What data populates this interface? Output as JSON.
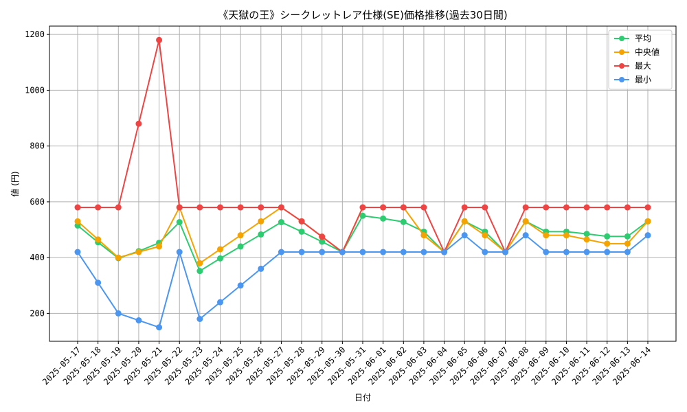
{
  "chart_data": {
    "type": "line",
    "title": "《天獄の王》シークレットレア仕様(SE)価格推移(過去30日間)",
    "xlabel": "日付",
    "ylabel": "値 (円)",
    "ylim": [
      100,
      1230
    ],
    "yticks": [
      200,
      400,
      600,
      800,
      1000,
      1200
    ],
    "grid": true,
    "legend_position": "top-right",
    "categories": [
      "2025-05-17",
      "2025-05-18",
      "2025-05-19",
      "2025-05-20",
      "2025-05-21",
      "2025-05-22",
      "2025-05-23",
      "2025-05-24",
      "2025-05-25",
      "2025-05-26",
      "2025-05-27",
      "2025-05-28",
      "2025-05-29",
      "2025-05-30",
      "2025-05-31",
      "2025-06-01",
      "2025-06-02",
      "2025-06-03",
      "2025-06-04",
      "2025-06-05",
      "2025-06-06",
      "2025-06-07",
      "2025-06-08",
      "2025-06-09",
      "2025-06-10",
      "2025-06-11",
      "2025-06-12",
      "2025-06-13",
      "2025-06-14"
    ],
    "series": [
      {
        "name": "平均",
        "color": "#2ecc71",
        "values": [
          515,
          455,
          398,
          423,
          453,
          527,
          352,
          397,
          440,
          483,
          527,
          493,
          457,
          420,
          550,
          540,
          528,
          493,
          420,
          530,
          493,
          420,
          530,
          493,
          493,
          485,
          476,
          476,
          530
        ]
      },
      {
        "name": "中央値",
        "color": "#f5a300",
        "values": [
          530,
          465,
          400,
          420,
          440,
          580,
          380,
          430,
          480,
          530,
          580,
          530,
          475,
          420,
          580,
          580,
          580,
          480,
          420,
          530,
          480,
          420,
          530,
          480,
          480,
          465,
          450,
          450,
          530
        ]
      },
      {
        "name": "最大",
        "color": "#ef4444",
        "values": [
          580,
          580,
          580,
          880,
          1180,
          580,
          580,
          580,
          580,
          580,
          580,
          530,
          475,
          420,
          580,
          580,
          580,
          580,
          420,
          580,
          580,
          420,
          580,
          580,
          580,
          580,
          580,
          580,
          580
        ]
      },
      {
        "name": "最小",
        "color": "#4b96f0",
        "values": [
          420,
          310,
          200,
          175,
          150,
          420,
          180,
          240,
          300,
          360,
          420,
          420,
          420,
          420,
          420,
          420,
          420,
          420,
          420,
          480,
          420,
          420,
          480,
          420,
          420,
          420,
          420,
          420,
          480
        ]
      }
    ]
  }
}
